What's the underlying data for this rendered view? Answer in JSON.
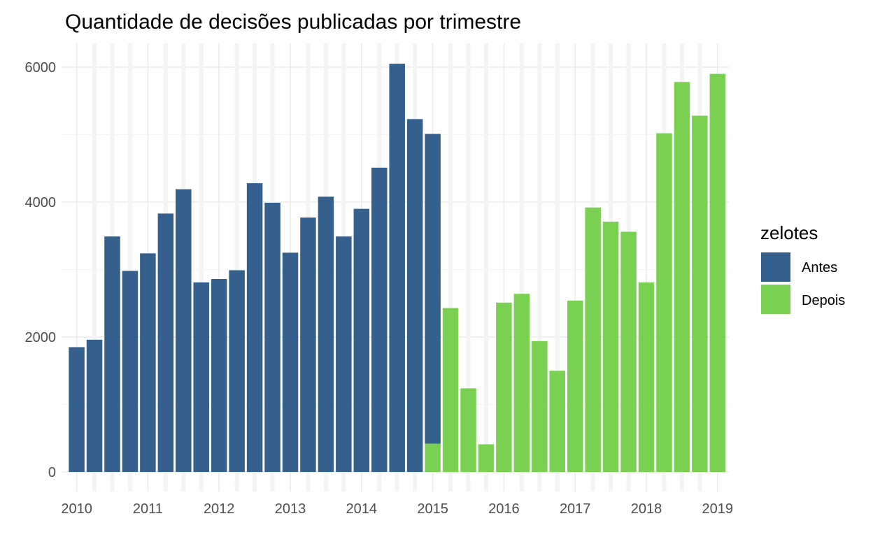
{
  "chart_data": {
    "type": "bar",
    "title": "Quantidade de decisões publicadas por trimestre",
    "xlabel": "",
    "ylabel": "",
    "ylim": [
      0,
      6300
    ],
    "y_ticks": [
      0,
      2000,
      4000,
      6000
    ],
    "x_tick_labels": [
      "2010",
      "2011",
      "2012",
      "2013",
      "2014",
      "2015",
      "2016",
      "2017",
      "2018",
      "2019"
    ],
    "grid": true,
    "legend": {
      "title": "zelotes",
      "position": "right"
    },
    "series": [
      {
        "name": "Antes",
        "color": "#355f8d",
        "points": [
          {
            "quarter": "2010 Q1",
            "value": 1850
          },
          {
            "quarter": "2010 Q2",
            "value": 1960
          },
          {
            "quarter": "2010 Q3",
            "value": 3490
          },
          {
            "quarter": "2010 Q4",
            "value": 2980
          },
          {
            "quarter": "2011 Q1",
            "value": 3240
          },
          {
            "quarter": "2011 Q2",
            "value": 3830
          },
          {
            "quarter": "2011 Q3",
            "value": 4190
          },
          {
            "quarter": "2011 Q4",
            "value": 2810
          },
          {
            "quarter": "2012 Q1",
            "value": 2860
          },
          {
            "quarter": "2012 Q2",
            "value": 2990
          },
          {
            "quarter": "2012 Q3",
            "value": 4280
          },
          {
            "quarter": "2012 Q4",
            "value": 3990
          },
          {
            "quarter": "2013 Q1",
            "value": 3250
          },
          {
            "quarter": "2013 Q2",
            "value": 3770
          },
          {
            "quarter": "2013 Q3",
            "value": 4080
          },
          {
            "quarter": "2013 Q4",
            "value": 3490
          },
          {
            "quarter": "2014 Q1",
            "value": 3900
          },
          {
            "quarter": "2014 Q2",
            "value": 4510
          },
          {
            "quarter": "2014 Q3",
            "value": 6050
          },
          {
            "quarter": "2014 Q4",
            "value": 5230
          },
          {
            "quarter": "2015 Q1",
            "value": 4590
          }
        ]
      },
      {
        "name": "Depois",
        "color": "#7ad151",
        "points": [
          {
            "quarter": "2015 Q1",
            "value": 420
          },
          {
            "quarter": "2015 Q2",
            "value": 2430
          },
          {
            "quarter": "2015 Q3",
            "value": 1240
          },
          {
            "quarter": "2015 Q4",
            "value": 410
          },
          {
            "quarter": "2016 Q1",
            "value": 2510
          },
          {
            "quarter": "2016 Q2",
            "value": 2640
          },
          {
            "quarter": "2016 Q3",
            "value": 1940
          },
          {
            "quarter": "2016 Q4",
            "value": 1500
          },
          {
            "quarter": "2017 Q1",
            "value": 2540
          },
          {
            "quarter": "2017 Q2",
            "value": 3920
          },
          {
            "quarter": "2017 Q3",
            "value": 3710
          },
          {
            "quarter": "2017 Q4",
            "value": 3560
          },
          {
            "quarter": "2018 Q1",
            "value": 2810
          },
          {
            "quarter": "2018 Q2",
            "value": 5020
          },
          {
            "quarter": "2018 Q3",
            "value": 5780
          },
          {
            "quarter": "2018 Q4",
            "value": 5280
          },
          {
            "quarter": "2019 Q1",
            "value": 5900
          }
        ]
      }
    ]
  }
}
